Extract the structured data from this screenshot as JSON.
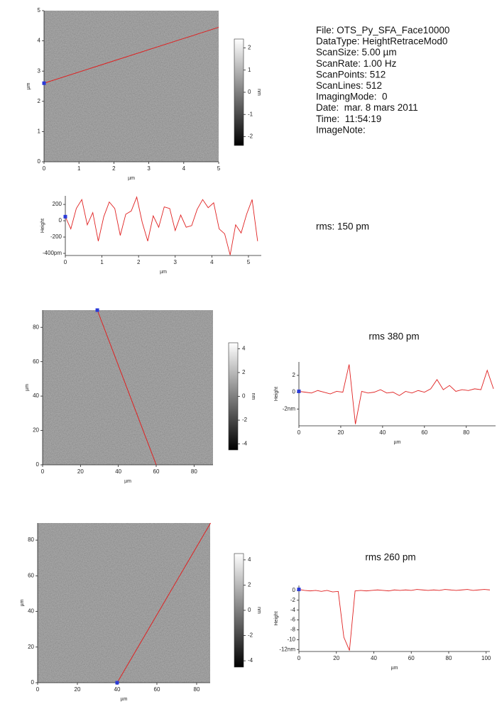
{
  "chart_data": [
    {
      "type": "image",
      "xlabel": "µm",
      "ylabel": "µm",
      "xlim": [
        0,
        5
      ],
      "ylim": [
        0,
        5
      ],
      "xticks": [
        0,
        1,
        2,
        3,
        4,
        5
      ],
      "yticks": [
        0,
        1,
        2,
        3,
        4,
        5
      ],
      "profile_line": {
        "x": [
          0,
          5
        ],
        "y": [
          2.6,
          4.45
        ],
        "color": "#e02020"
      },
      "colorbar_lim": [
        -2.4,
        2.4
      ],
      "colorbar_ticks": [
        -2,
        -1,
        0,
        1,
        2
      ],
      "colorbar_label": "nm",
      "annotations": [
        "File: OTS_Py_SFA_Face10000",
        "DataType: HeightRetraceMod0",
        "ScanSize: 5.00 µm",
        "ScanRate: 1.00 Hz",
        "ScanPoints: 512",
        "ScanLines: 512",
        "ImagingMode:  0",
        "Date:  mar. 8 mars 2011",
        "Time:  11:54:19",
        "ImageNote:"
      ]
    },
    {
      "type": "line",
      "title": "rms: 150 pm",
      "xlabel": "µm",
      "ylabel": "Height",
      "xlim": [
        0,
        5.35
      ],
      "ylim": [
        -426,
        305
      ],
      "xticks": [
        0,
        1,
        2,
        3,
        4,
        5
      ],
      "yticks": [
        200,
        0,
        -200,
        {
          "value": -400,
          "label": "-400pm"
        }
      ],
      "x": [
        0,
        0.15,
        0.3,
        0.45,
        0.6,
        0.75,
        0.9,
        1.05,
        1.2,
        1.35,
        1.5,
        1.65,
        1.8,
        1.95,
        2.1,
        2.25,
        2.4,
        2.55,
        2.7,
        2.85,
        3.0,
        3.15,
        3.3,
        3.45,
        3.6,
        3.75,
        3.9,
        4.05,
        4.2,
        4.35,
        4.5,
        4.65,
        4.8,
        4.95,
        5.1,
        5.25
      ],
      "series": [
        {
          "color": "#e02020",
          "values": [
            50,
            -100,
            150,
            260,
            -50,
            100,
            -250,
            50,
            230,
            150,
            -180,
            80,
            120,
            290,
            -20,
            -250,
            60,
            -80,
            170,
            150,
            -120,
            70,
            -80,
            -60,
            140,
            260,
            160,
            220,
            -100,
            -160,
            -420,
            -50,
            -150,
            80,
            260,
            -250
          ]
        }
      ]
    },
    {
      "type": "image",
      "xlabel": "µm",
      "ylabel": "µm",
      "xlim": [
        0,
        90
      ],
      "ylim": [
        0,
        90
      ],
      "xticks": [
        0,
        20,
        40,
        60,
        80
      ],
      "yticks": [
        0,
        20,
        40,
        60,
        80
      ],
      "profile_line": {
        "x": [
          28.9,
          60
        ],
        "y": [
          90,
          0
        ],
        "color": "#e02020"
      },
      "colorbar_lim": [
        -4.5,
        4.5
      ],
      "colorbar_ticks": [
        -4,
        -2,
        0,
        2,
        4
      ],
      "colorbar_label": "nm"
    },
    {
      "type": "line",
      "title": "rms 380 pm",
      "xlabel": "µm",
      "ylabel": "Height",
      "xlim": [
        0,
        94
      ],
      "ylim": [
        -4.0,
        3.6
      ],
      "xticks": [
        0,
        20,
        40,
        60,
        80
      ],
      "yticks": [
        2,
        0,
        {
          "value": -2,
          "label": "-2nm"
        }
      ],
      "x": [
        0,
        3,
        6,
        9,
        12,
        15,
        18,
        21,
        24,
        27,
        30,
        33,
        36,
        39,
        42,
        45,
        48,
        51,
        54,
        57,
        60,
        63,
        66,
        69,
        72,
        75,
        78,
        81,
        84,
        87,
        90,
        93
      ],
      "series": [
        {
          "color": "#e02020",
          "values": [
            0.1,
            0,
            -0.1,
            0.2,
            0,
            -0.2,
            0.1,
            0,
            3.3,
            -3.8,
            0.1,
            -0.1,
            0,
            0.3,
            -0.1,
            0,
            -0.4,
            0.1,
            -0.1,
            0.2,
            0,
            0.4,
            1.5,
            0.3,
            0.8,
            0.1,
            0.3,
            0.2,
            0.4,
            0.3,
            2.6,
            0.4
          ]
        }
      ]
    },
    {
      "type": "image",
      "xlabel": "µm",
      "ylabel": "µm",
      "xlim": [
        0,
        86.8
      ],
      "ylim": [
        0,
        89.6
      ],
      "xticks": [
        0,
        20,
        40,
        60,
        80
      ],
      "yticks": [
        0,
        20,
        40,
        60,
        80
      ],
      "profile_line": {
        "x": [
          40,
          87
        ],
        "y": [
          0,
          89.6
        ],
        "color": "#e02020"
      },
      "colorbar_lim": [
        -4.5,
        4.5
      ],
      "colorbar_ticks": [
        -4,
        -2,
        0,
        2,
        4
      ],
      "colorbar_label": "nm"
    },
    {
      "type": "line",
      "title": "rms 260 pm",
      "xlabel": "µm",
      "ylabel": "Height",
      "xlim": [
        0,
        102
      ],
      "ylim": [
        -12.4,
        1.0
      ],
      "xticks": [
        0,
        20,
        40,
        60,
        80,
        100
      ],
      "yticks": [
        0,
        -2,
        -4,
        -6,
        -8,
        -10,
        {
          "value": -12,
          "label": "-12nm"
        }
      ],
      "x": [
        0,
        3,
        6,
        9,
        12,
        15,
        18,
        21,
        24,
        27,
        30,
        33,
        36,
        39,
        42,
        45,
        48,
        51,
        54,
        57,
        60,
        63,
        66,
        69,
        72,
        75,
        78,
        81,
        84,
        87,
        90,
        93,
        96,
        99,
        102
      ],
      "series": [
        {
          "color": "#e02020",
          "values": [
            0.2,
            0,
            -0.1,
            0,
            -0.2,
            0,
            -0.3,
            -0.2,
            -9.5,
            -12.2,
            -0.1,
            0,
            -0.1,
            0,
            0.1,
            0,
            -0.1,
            0.1,
            0,
            0.1,
            0,
            0.2,
            0.1,
            0,
            0.1,
            0,
            0.2,
            0.1,
            0,
            0.1,
            0.2,
            0,
            0.1,
            0.2,
            0.1
          ]
        }
      ]
    }
  ]
}
